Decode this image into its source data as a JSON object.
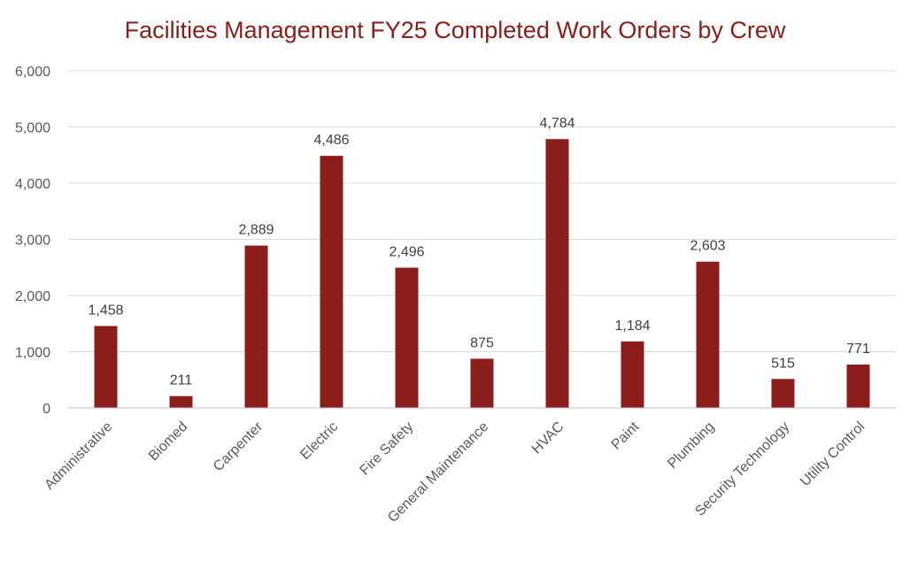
{
  "chart_data": {
    "type": "bar",
    "title": "Facilities Management FY25 Completed Work Orders by Crew",
    "categories": [
      "Administrative",
      "Biomed",
      "Carpenter",
      "Electric",
      "Fire Safety",
      "General Maintenance",
      "HVAC",
      "Paint",
      "Plumbing",
      "Security Technology",
      "Utility Control"
    ],
    "values": [
      1458,
      211,
      2889,
      4486,
      2496,
      875,
      4784,
      1184,
      2603,
      515,
      771
    ],
    "data_labels": [
      "1,458",
      "211",
      "2,889",
      "4,486",
      "2,496",
      "875",
      "4,784",
      "1,184",
      "2,603",
      "515",
      "771"
    ],
    "ylim": [
      0,
      6000
    ],
    "yticks": [
      0,
      1000,
      2000,
      3000,
      4000,
      5000,
      6000
    ],
    "ytick_labels": [
      "0",
      "1,000",
      "2,000",
      "3,000",
      "4,000",
      "5,000",
      "6,000"
    ],
    "grid": true,
    "legend": "none",
    "xlabel": "",
    "ylabel": "",
    "colors": {
      "bar": "#8B1E1A",
      "title": "#8B1E1A",
      "grid": "#D9D9D9",
      "axis": "#BFBFBF"
    }
  }
}
